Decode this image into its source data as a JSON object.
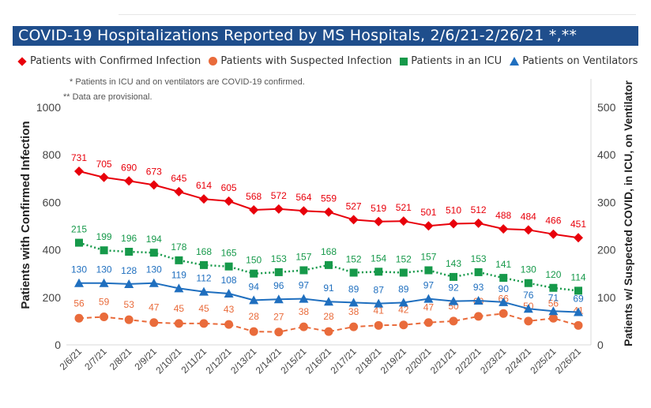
{
  "title": "COVID-19 Hospitalizations Reported by MS Hospitals, 2/6/21-2/26/21 *,**",
  "notes": [
    "* Patients in ICU and on ventilators are COVID-19 confirmed.",
    "** Data are provisional."
  ],
  "colors": {
    "title_bg": "#1f4e8c",
    "confirmed": "#e8000b",
    "suspected": "#e96b3b",
    "icu": "#16994a",
    "ventilators": "#1f6fbf"
  },
  "chart_data": {
    "type": "line",
    "x": [
      "2/6/21",
      "2/7/21",
      "2/8/21",
      "2/9/21",
      "2/10/21",
      "2/11/21",
      "2/12/21",
      "2/13/21",
      "2/14/21",
      "2/15/21",
      "2/16/21",
      "2/17/21",
      "2/18/21",
      "2/19/21",
      "2/20/21",
      "2/21/21",
      "2/22/21",
      "2/23/21",
      "2/24/21",
      "2/25/21",
      "2/26/21"
    ],
    "ylabel": "Patients with Confirmed Infection",
    "ylabel_right": "Patients w/ Suspected COVID, in ICU, on Ventilator",
    "ylim": [
      0,
      1000
    ],
    "ylim_right": [
      0,
      500
    ],
    "yticks": [
      0,
      200,
      400,
      600,
      800,
      1000
    ],
    "yticks_right": [
      0,
      100,
      200,
      300,
      400,
      500
    ],
    "legend_position": "top",
    "grid": false,
    "series": [
      {
        "name": "Patients with Confirmed Infection",
        "axis": "left",
        "marker": "diamond",
        "line": "solid",
        "values": [
          731,
          705,
          690,
          673,
          645,
          614,
          605,
          568,
          572,
          564,
          559,
          527,
          519,
          521,
          501,
          510,
          512,
          488,
          484,
          466,
          451
        ]
      },
      {
        "name": "Patients with Suspected Infection",
        "axis": "right",
        "marker": "circle",
        "line": "dashed",
        "values": [
          56,
          59,
          53,
          47,
          45,
          45,
          43,
          28,
          27,
          38,
          28,
          38,
          41,
          42,
          47,
          50,
          60,
          66,
          50,
          56,
          41
        ]
      },
      {
        "name": "Patients in an ICU",
        "axis": "right",
        "marker": "square",
        "line": "dotted",
        "values": [
          215,
          199,
          196,
          194,
          178,
          168,
          165,
          150,
          153,
          157,
          168,
          152,
          154,
          152,
          157,
          143,
          153,
          141,
          130,
          120,
          114
        ]
      },
      {
        "name": "Patients on Ventilators",
        "axis": "right",
        "marker": "triangle",
        "line": "solid",
        "values": [
          130,
          130,
          128,
          130,
          119,
          112,
          108,
          94,
          96,
          97,
          91,
          89,
          87,
          89,
          97,
          92,
          93,
          90,
          76,
          71,
          69
        ]
      }
    ]
  }
}
